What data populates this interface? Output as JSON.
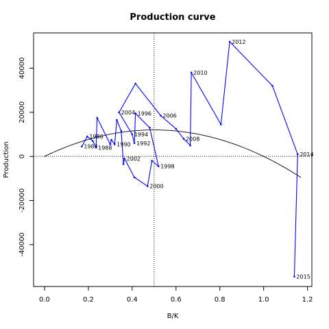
{
  "chart_data": {
    "type": "line",
    "title": "Production curve",
    "xlabel": "B/K",
    "ylabel": "Production",
    "xlim": [
      -0.05,
      1.22
    ],
    "ylim": [
      -59000,
      56000
    ],
    "x_ticks": [
      0.0,
      0.2,
      0.4,
      0.6,
      0.8,
      1.0,
      1.2
    ],
    "x_tick_labels": [
      "0.0",
      "0.2",
      "0.4",
      "0.6",
      "0.8",
      "1.0",
      "1.2"
    ],
    "y_ticks": [
      -40000,
      -20000,
      0,
      20000,
      40000
    ],
    "y_tick_labels": [
      "-40000",
      "-20000",
      "0",
      "20000",
      "40000"
    ],
    "grid": false,
    "reference_lines": {
      "horizontal_y": 0,
      "vertical_x": 0.5
    },
    "series": [
      {
        "color": "#0000ff",
        "points": [
          {
            "x": 0.17,
            "y": 4500,
            "label": "1984"
          },
          {
            "x": 0.195,
            "y": 9000,
            "label": "1986"
          },
          {
            "x": 0.22,
            "y": 7000,
            "label": ""
          },
          {
            "x": 0.235,
            "y": 4000,
            "label": "1988"
          },
          {
            "x": 0.24,
            "y": 17500,
            "label": ""
          },
          {
            "x": 0.3,
            "y": 5500,
            "label": ""
          },
          {
            "x": 0.305,
            "y": 7500,
            "label": ""
          },
          {
            "x": 0.32,
            "y": 5500,
            "label": "1990"
          },
          {
            "x": 0.33,
            "y": 16500,
            "label": ""
          },
          {
            "x": 0.35,
            "y": 11500,
            "label": ""
          },
          {
            "x": 0.36,
            "y": -3500,
            "label": ""
          },
          {
            "x": 0.365,
            "y": -1000,
            "label": "2002"
          },
          {
            "x": 0.41,
            "y": -9500,
            "label": ""
          },
          {
            "x": 0.47,
            "y": -13500,
            "label": "2000"
          },
          {
            "x": 0.49,
            "y": -2000,
            "label": ""
          },
          {
            "x": 0.52,
            "y": -4500,
            "label": "1998"
          },
          {
            "x": 0.48,
            "y": 13000,
            "label": ""
          },
          {
            "x": 0.415,
            "y": 19500,
            "label": "1996"
          },
          {
            "x": 0.41,
            "y": 6000,
            "label": "1992"
          },
          {
            "x": 0.4,
            "y": 10000,
            "label": "1994"
          },
          {
            "x": 0.34,
            "y": 20000,
            "label": "2004"
          },
          {
            "x": 0.415,
            "y": 33000,
            "label": ""
          },
          {
            "x": 0.53,
            "y": 18500,
            "label": "2006"
          },
          {
            "x": 0.6,
            "y": 12500,
            "label": ""
          },
          {
            "x": 0.635,
            "y": 8000,
            "label": "2008"
          },
          {
            "x": 0.665,
            "y": 5000,
            "label": ""
          },
          {
            "x": 0.67,
            "y": 38000,
            "label": "2010"
          },
          {
            "x": 0.805,
            "y": 14500,
            "label": ""
          },
          {
            "x": 0.845,
            "y": 52000,
            "label": "2012"
          },
          {
            "x": 1.04,
            "y": 32000,
            "label": ""
          },
          {
            "x": 1.155,
            "y": 1000,
            "label": "2014"
          },
          {
            "x": 1.14,
            "y": -54500,
            "label": "2015"
          }
        ]
      }
    ],
    "curve": {
      "type": "parabola",
      "color": "#000000",
      "a": -48000,
      "b": 48000,
      "x_range": [
        0.0,
        1.17
      ]
    }
  }
}
